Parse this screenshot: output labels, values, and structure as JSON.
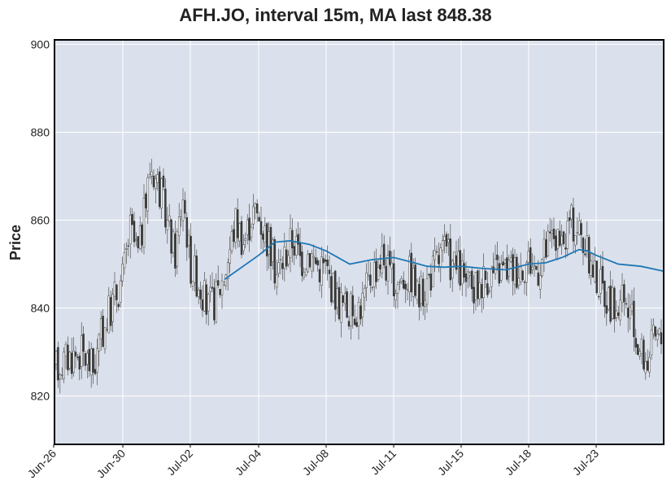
{
  "chart_data": {
    "type": "candlestick",
    "title": "AFH.JO, interval 15m, MA last 848.38",
    "xlabel": "",
    "ylabel": "Price",
    "ylim": [
      809,
      901
    ],
    "yticks": [
      820,
      840,
      860,
      880,
      900
    ],
    "xticks": [
      "Jun-26",
      "Jun-30",
      "Jul-02",
      "Jul-04",
      "Jul-08",
      "Jul-11",
      "Jul-15",
      "Jul-18",
      "Jul-23"
    ],
    "grid": true,
    "ma_series": {
      "x": [
        "Jul-03",
        "Jul-04",
        "Jul-05",
        "Jul-06",
        "Jul-07",
        "Jul-08",
        "Jul-09",
        "Jul-10",
        "Jul-11",
        "Jul-12",
        "Jul-13",
        "Jul-14",
        "Jul-15",
        "Jul-16",
        "Jul-17",
        "Jul-18",
        "Jul-19",
        "Jul-20",
        "Jul-21",
        "Jul-22",
        "Jul-23",
        "Jul-24",
        "Jul-25",
        "Jul-26"
      ],
      "values": [
        846.5,
        852,
        855,
        855.3,
        854.5,
        853,
        850,
        851,
        851.5,
        850.5,
        849.5,
        849.3,
        849.5,
        849,
        848.7,
        850,
        850.3,
        851.5,
        853.3,
        853,
        852,
        850,
        849.5,
        848.4
      ]
    },
    "colors": {
      "ma": "#1f77b4",
      "candle": "#3a3a3a",
      "plot_bg": "#dbe1ec",
      "grid": "#ffffff"
    }
  }
}
